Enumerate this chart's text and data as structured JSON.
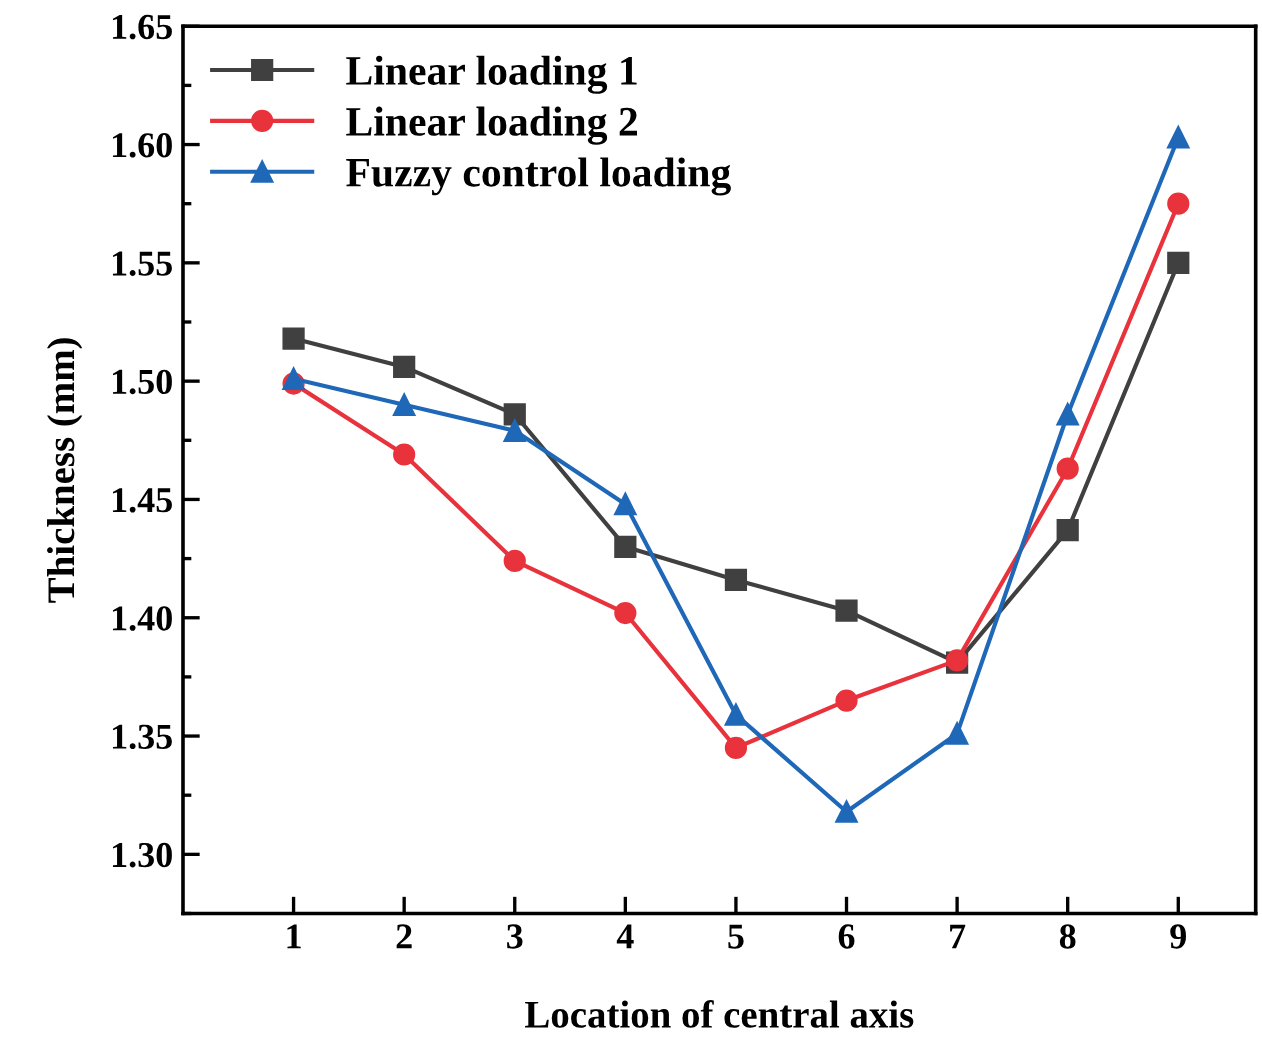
{
  "chart_data": {
    "type": "line",
    "xlabel": "Location of central axis",
    "ylabel": "Thickness (mm)",
    "x": [
      1,
      2,
      3,
      4,
      5,
      6,
      7,
      8,
      9
    ],
    "series": [
      {
        "name": "Linear loading 1",
        "color": "#404040",
        "marker": "square",
        "values": [
          1.518,
          1.506,
          1.486,
          1.43,
          1.416,
          1.403,
          1.381,
          1.437,
          1.55
        ]
      },
      {
        "name": "Linear loading 2",
        "color": "#e8323c",
        "marker": "circle",
        "values": [
          1.499,
          1.469,
          1.424,
          1.402,
          1.345,
          1.365,
          1.382,
          1.463,
          1.575
        ]
      },
      {
        "name": "Fuzzy control loading",
        "color": "#1f68b8",
        "marker": "triangle",
        "values": [
          1.501,
          1.49,
          1.479,
          1.448,
          1.359,
          1.318,
          1.351,
          1.486,
          1.603
        ]
      }
    ],
    "xlim": [
      0,
      9.7
    ],
    "xticks": [
      1,
      2,
      3,
      4,
      5,
      6,
      7,
      8,
      9
    ],
    "ylim": [
      1.275,
      1.65
    ],
    "yticks": [
      {
        "value": 1.3,
        "label": "1.30"
      },
      1.35,
      {
        "value": 1.4,
        "label": "1.40"
      },
      1.45,
      {
        "value": 1.5,
        "label": "1.50"
      },
      1.55,
      {
        "value": 1.6,
        "label": "1.60"
      },
      1.65
    ],
    "grid": false,
    "legend": "top left",
    "line_style": "solid"
  }
}
